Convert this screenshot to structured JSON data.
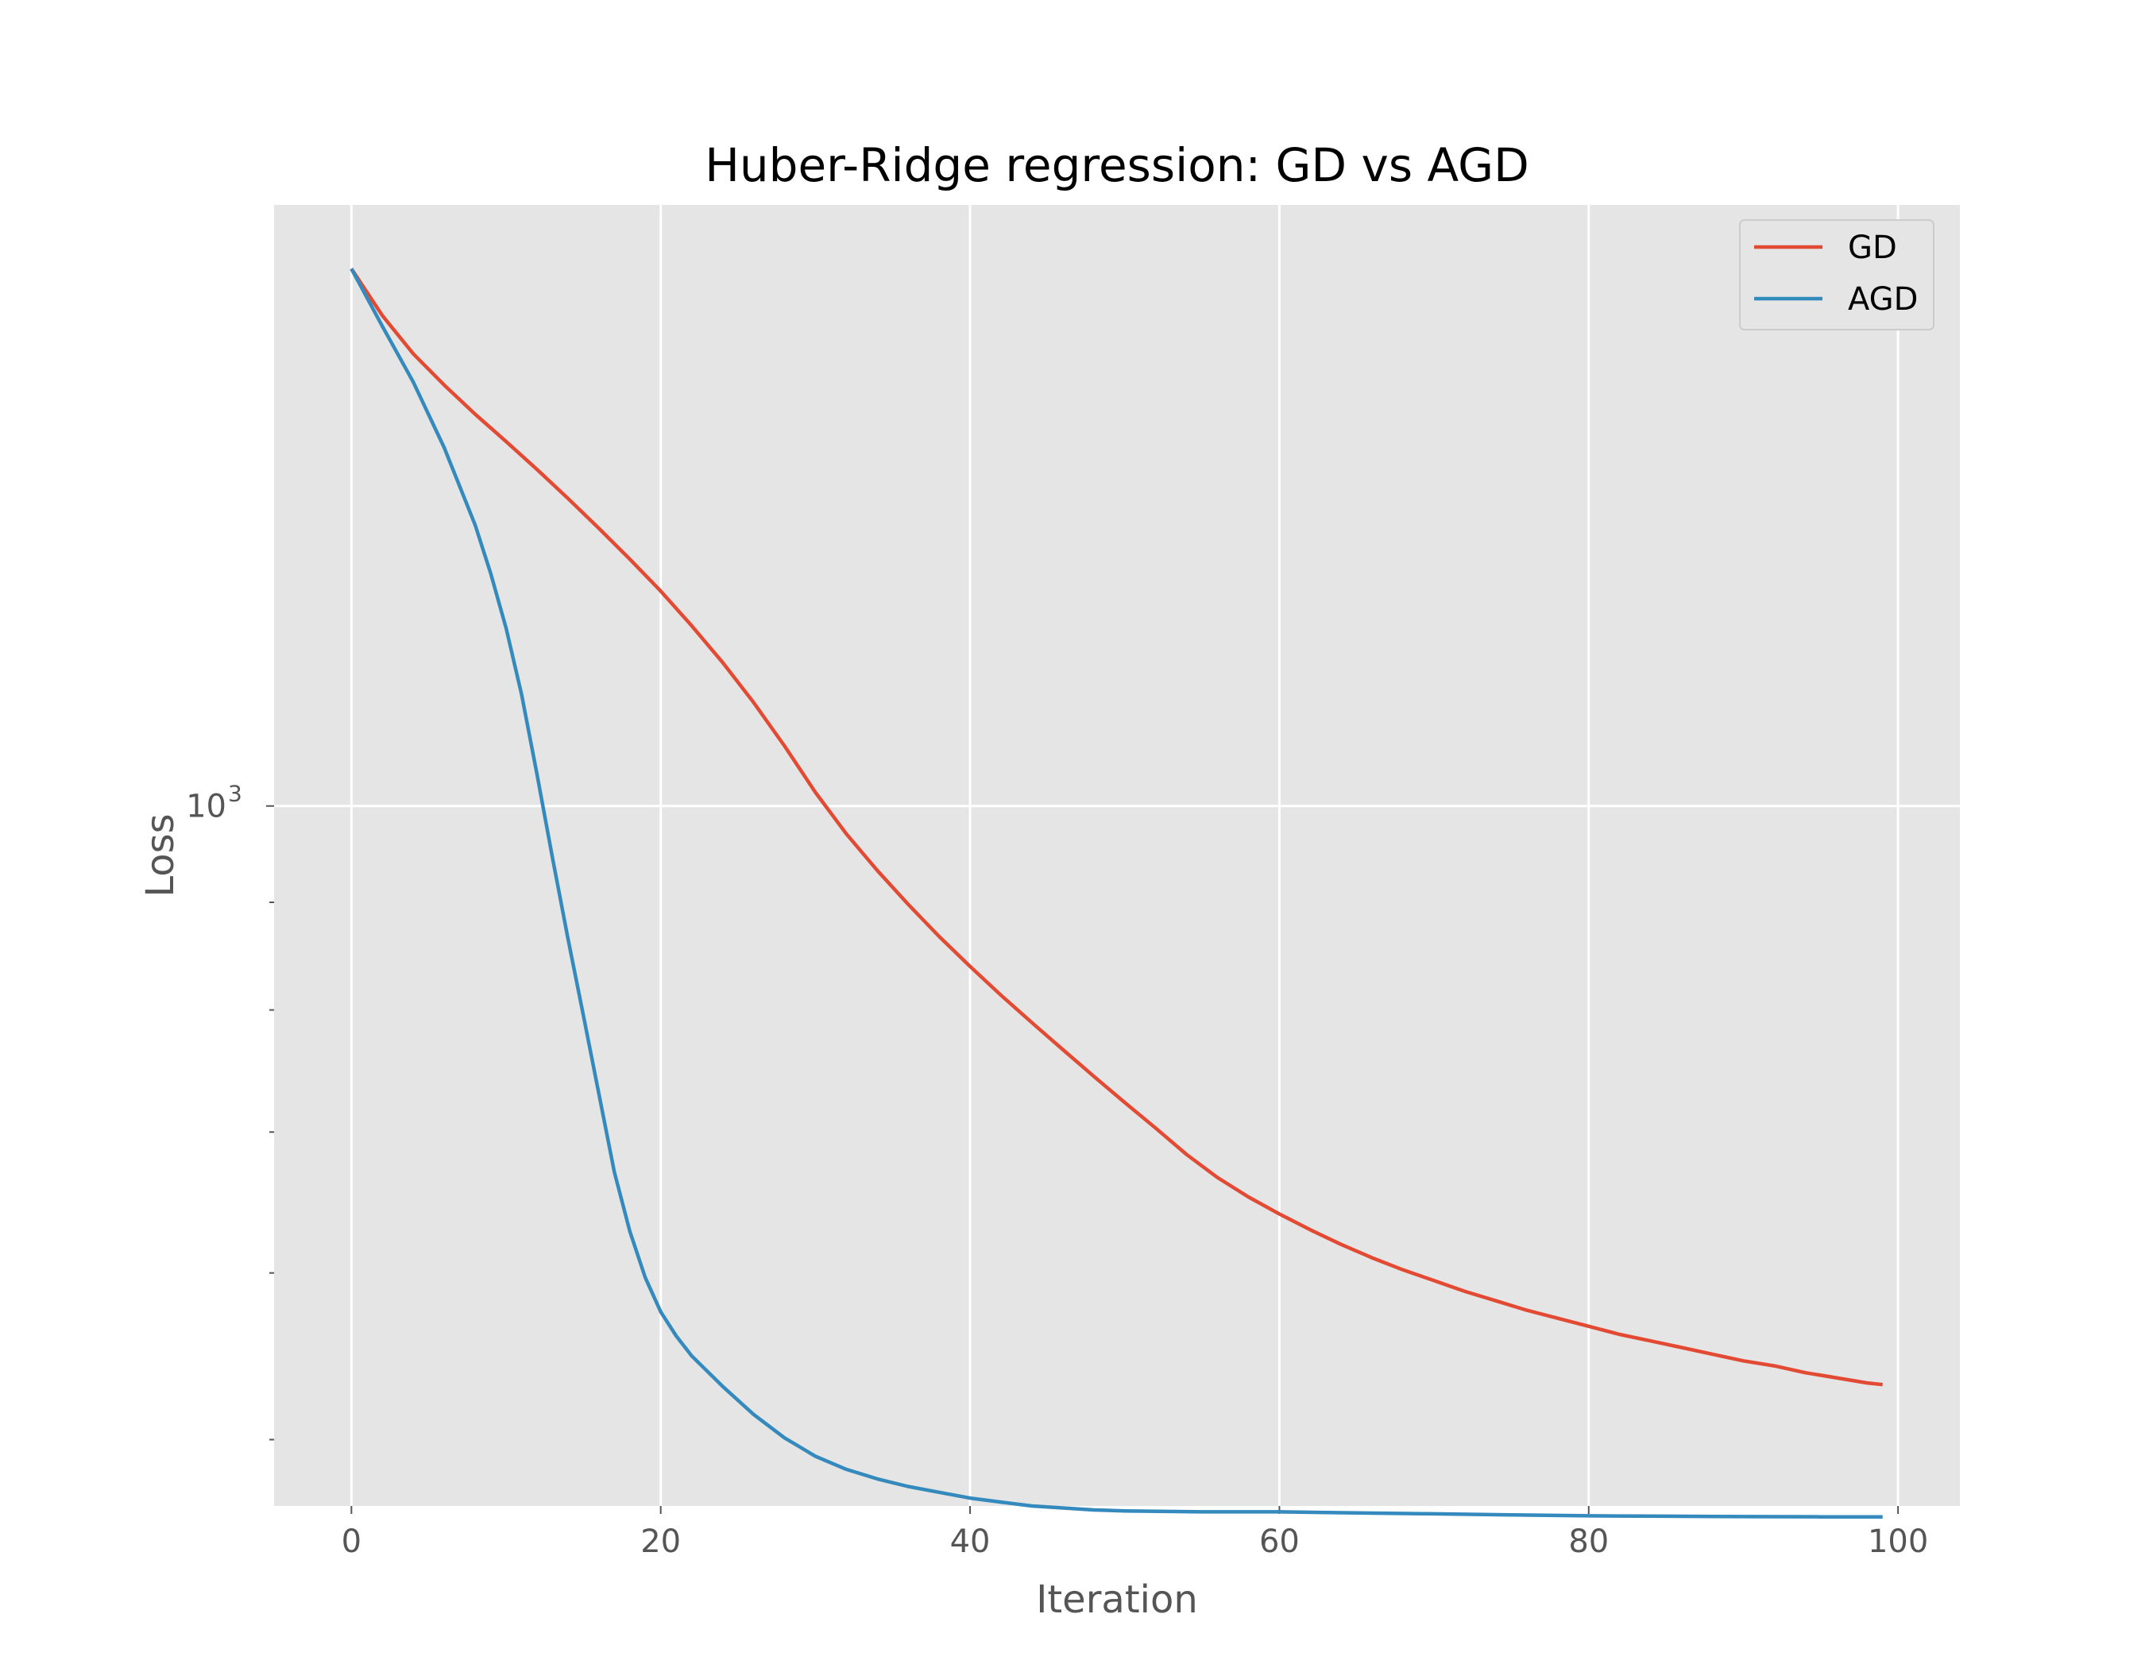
{
  "chart_data": {
    "type": "line",
    "title": "Huber-Ridge regression: GD vs AGD",
    "xlabel": "Iteration",
    "ylabel": "Loss",
    "xlim": [
      -5,
      104
    ],
    "ylim": [
      465,
      1930
    ],
    "yscale": "log",
    "grid": true,
    "legend": "top-right",
    "x_ticks": [
      0,
      20,
      40,
      60,
      80,
      100
    ],
    "y_major_ticks": [
      {
        "value": 1000,
        "base": "10",
        "exponent": "3"
      }
    ],
    "y_minor_ticks": [
      500,
      600,
      700,
      800,
      900,
      2000
    ],
    "series": [
      {
        "name": "GD",
        "color": "#E24A33",
        "points": [
          [
            0,
            1800
          ],
          [
            2,
            1710
          ],
          [
            4,
            1640
          ],
          [
            6,
            1585
          ],
          [
            8,
            1535
          ],
          [
            10,
            1490
          ],
          [
            12,
            1445
          ],
          [
            14,
            1400
          ],
          [
            16,
            1355
          ],
          [
            18,
            1310
          ],
          [
            20,
            1265
          ],
          [
            22,
            1218
          ],
          [
            24,
            1170
          ],
          [
            26,
            1120
          ],
          [
            28,
            1068
          ],
          [
            30,
            1015
          ],
          [
            32,
            970
          ],
          [
            34,
            932
          ],
          [
            36,
            898
          ],
          [
            38,
            867
          ],
          [
            40,
            839
          ],
          [
            42,
            813
          ],
          [
            44,
            789
          ],
          [
            46,
            766
          ],
          [
            48,
            744
          ],
          [
            50,
            723
          ],
          [
            52,
            703
          ],
          [
            54,
            683
          ],
          [
            56,
            666
          ],
          [
            58,
            652
          ],
          [
            60,
            640
          ],
          [
            62,
            629
          ],
          [
            64,
            619
          ],
          [
            66,
            610
          ],
          [
            68,
            602
          ],
          [
            70,
            595
          ],
          [
            72,
            588
          ],
          [
            74,
            582
          ],
          [
            76,
            576
          ],
          [
            78,
            571
          ],
          [
            80,
            566
          ],
          [
            82,
            561
          ],
          [
            84,
            557
          ],
          [
            86,
            553
          ],
          [
            88,
            549
          ],
          [
            90,
            545
          ],
          [
            92,
            542
          ],
          [
            94,
            538
          ],
          [
            96,
            535
          ],
          [
            98,
            532
          ],
          [
            99,
            531
          ]
        ]
      },
      {
        "name": "AGD",
        "color": "#348ABD",
        "points": [
          [
            0,
            1800
          ],
          [
            2,
            1690
          ],
          [
            4,
            1590
          ],
          [
            6,
            1480
          ],
          [
            8,
            1360
          ],
          [
            9,
            1290
          ],
          [
            10,
            1215
          ],
          [
            11,
            1130
          ],
          [
            12,
            1035
          ],
          [
            13,
            945
          ],
          [
            14,
            865
          ],
          [
            15,
            795
          ],
          [
            16,
            730
          ],
          [
            17,
            670
          ],
          [
            18,
            628
          ],
          [
            19,
            597
          ],
          [
            20,
            575
          ],
          [
            21,
            560
          ],
          [
            22,
            548
          ],
          [
            24,
            530
          ],
          [
            26,
            514
          ],
          [
            28,
            501
          ],
          [
            30,
            491
          ],
          [
            32,
            484
          ],
          [
            34,
            479
          ],
          [
            36,
            475
          ],
          [
            38,
            472
          ],
          [
            40,
            469
          ],
          [
            42,
            467
          ],
          [
            44,
            465
          ],
          [
            46,
            464
          ],
          [
            48,
            463
          ],
          [
            50,
            462.5
          ],
          [
            55,
            462
          ],
          [
            60,
            462
          ],
          [
            65,
            461.5
          ],
          [
            70,
            461
          ],
          [
            75,
            460.5
          ],
          [
            80,
            460
          ],
          [
            85,
            459.8
          ],
          [
            90,
            459.6
          ],
          [
            95,
            459.5
          ],
          [
            99,
            459.5
          ]
        ]
      }
    ]
  }
}
